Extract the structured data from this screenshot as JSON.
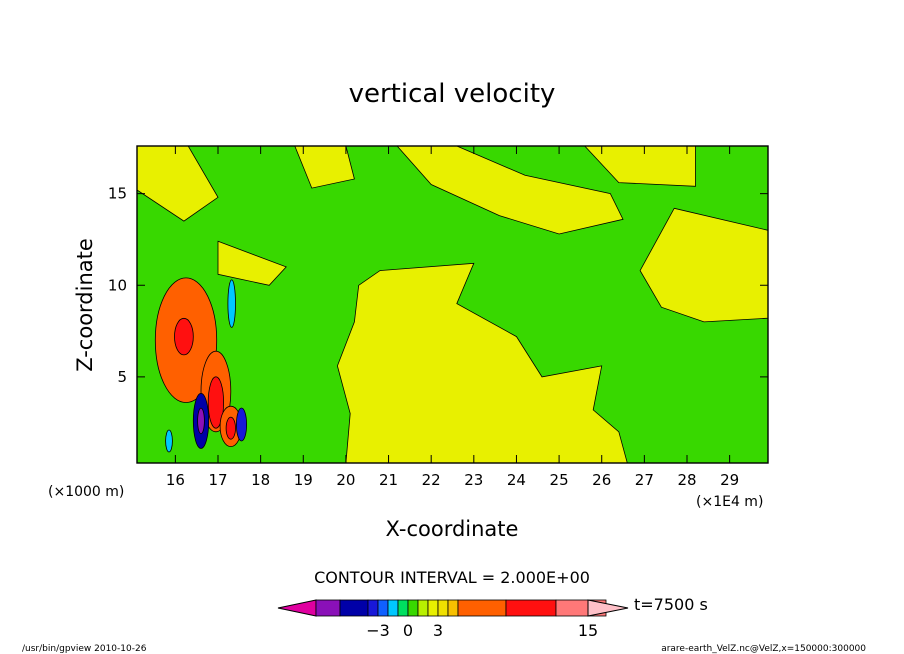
{
  "chart_data": {
    "type": "contour",
    "title": "vertical velocity",
    "xlabel": "X-coordinate",
    "ylabel": "Z-coordinate",
    "x_unit": "(×1E4 m)",
    "y_unit": "(×1000 m)",
    "xlim": [
      15.1,
      29.9
    ],
    "ylim": [
      0.3,
      17.6
    ],
    "x_ticks": [
      16,
      17,
      18,
      19,
      20,
      21,
      22,
      23,
      24,
      25,
      26,
      27,
      28,
      29
    ],
    "y_ticks": [
      5,
      10,
      15
    ],
    "contour_interval_label": "CONTOUR INTERVAL = 2.000E+00",
    "time_label": "t=7500 s",
    "colorbar": {
      "tick_labels": [
        {
          "value": -3,
          "label": "−3"
        },
        {
          "value": 0,
          "label": "0"
        },
        {
          "value": 3,
          "label": "3"
        },
        {
          "value": 15,
          "label": "15"
        }
      ],
      "levels": [
        -15,
        -11,
        -7,
        -5,
        -3,
        -2,
        -1,
        0,
        1,
        2,
        3,
        4,
        5,
        9,
        13,
        17
      ],
      "colors": [
        "#e000a0",
        "#8a10b8",
        "#0000a8",
        "#1818d8",
        "#1060ff",
        "#00c8ff",
        "#00e060",
        "#38d800",
        "#b8f000",
        "#e8f000",
        "#f0e000",
        "#f8c000",
        "#ff6000",
        "#ff1010",
        "#ff7878",
        "#ffc0c8"
      ]
    },
    "features": [
      {
        "kind": "updraft",
        "x": 16.2,
        "z": 7.2,
        "value": 7
      },
      {
        "kind": "updraft",
        "x": 16.9,
        "z": 4.0,
        "value": 9
      },
      {
        "kind": "updraft",
        "x": 17.3,
        "z": 2.3,
        "value": 7
      },
      {
        "kind": "downdraft",
        "x": 16.6,
        "z": 2.6,
        "value": -5
      },
      {
        "kind": "downdraft",
        "x": 17.5,
        "z": 2.4,
        "value": -3
      },
      {
        "kind": "downdraft",
        "x": 17.3,
        "z": 9.0,
        "value": -1
      }
    ]
  },
  "footer": {
    "left": "/usr/bin/gpview   2010-10-26",
    "right": "arare-earth_VelZ.nc@VelZ,x=150000:300000"
  }
}
